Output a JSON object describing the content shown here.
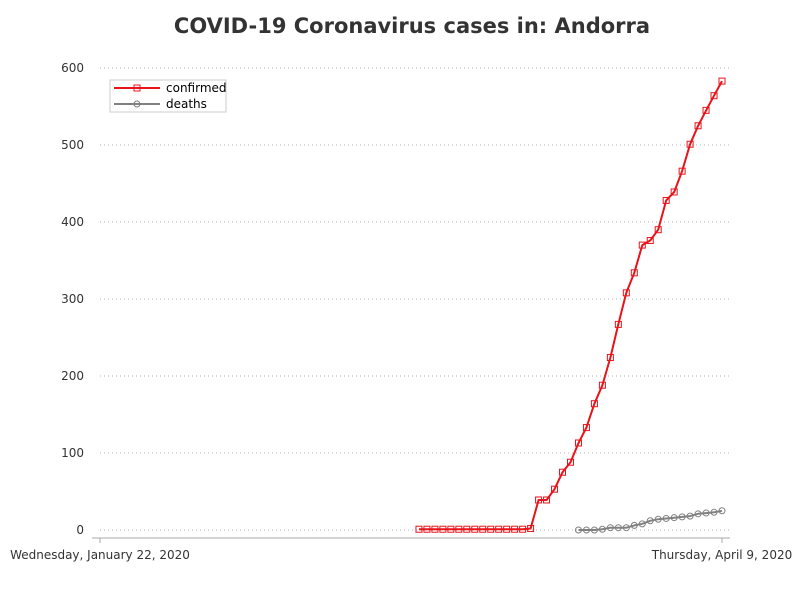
{
  "chart_data": {
    "type": "line",
    "title": "COVID-19 Coronavirus cases in: Andorra",
    "xlabel": "",
    "ylabel": "",
    "x_start_label": "Wednesday, January 22, 2020",
    "x_end_label": "Thursday, April 9, 2020",
    "x_range": [
      "2020-01-22",
      "2020-04-09"
    ],
    "ylim": [
      0,
      600
    ],
    "yticks": [
      "0",
      "100",
      "200",
      "300",
      "400",
      "500",
      "600"
    ],
    "grid": "horizontal dotted",
    "legend_position": "top-left",
    "series": [
      {
        "name": "confirmed",
        "color": "#e8141a",
        "marker": "square",
        "points": [
          [
            "2020-03-02",
            1
          ],
          [
            "2020-03-03",
            1
          ],
          [
            "2020-03-04",
            1
          ],
          [
            "2020-03-05",
            1
          ],
          [
            "2020-03-06",
            1
          ],
          [
            "2020-03-07",
            1
          ],
          [
            "2020-03-08",
            1
          ],
          [
            "2020-03-09",
            1
          ],
          [
            "2020-03-10",
            1
          ],
          [
            "2020-03-11",
            1
          ],
          [
            "2020-03-12",
            1
          ],
          [
            "2020-03-13",
            1
          ],
          [
            "2020-03-14",
            1
          ],
          [
            "2020-03-15",
            1
          ],
          [
            "2020-03-16",
            2
          ],
          [
            "2020-03-17",
            39
          ],
          [
            "2020-03-18",
            39
          ],
          [
            "2020-03-19",
            53
          ],
          [
            "2020-03-20",
            75
          ],
          [
            "2020-03-21",
            88
          ],
          [
            "2020-03-22",
            113
          ],
          [
            "2020-03-23",
            133
          ],
          [
            "2020-03-24",
            164
          ],
          [
            "2020-03-25",
            188
          ],
          [
            "2020-03-26",
            224
          ],
          [
            "2020-03-27",
            267
          ],
          [
            "2020-03-28",
            308
          ],
          [
            "2020-03-29",
            334
          ],
          [
            "2020-03-30",
            370
          ],
          [
            "2020-03-31",
            376
          ],
          [
            "2020-04-01",
            390
          ],
          [
            "2020-04-02",
            428
          ],
          [
            "2020-04-03",
            439
          ],
          [
            "2020-04-04",
            466
          ],
          [
            "2020-04-05",
            501
          ],
          [
            "2020-04-06",
            525
          ],
          [
            "2020-04-07",
            545
          ],
          [
            "2020-04-08",
            564
          ],
          [
            "2020-04-09",
            583
          ]
        ]
      },
      {
        "name": "deaths",
        "color": "#808080",
        "marker": "circle",
        "points": [
          [
            "2020-03-22",
            0
          ],
          [
            "2020-03-23",
            0
          ],
          [
            "2020-03-24",
            0
          ],
          [
            "2020-03-25",
            1
          ],
          [
            "2020-03-26",
            3
          ],
          [
            "2020-03-27",
            3
          ],
          [
            "2020-03-28",
            3
          ],
          [
            "2020-03-29",
            6
          ],
          [
            "2020-03-30",
            8
          ],
          [
            "2020-03-31",
            12
          ],
          [
            "2020-04-01",
            14
          ],
          [
            "2020-04-02",
            15
          ],
          [
            "2020-04-03",
            16
          ],
          [
            "2020-04-04",
            17
          ],
          [
            "2020-04-05",
            18
          ],
          [
            "2020-04-06",
            21
          ],
          [
            "2020-04-07",
            22
          ],
          [
            "2020-04-08",
            23
          ],
          [
            "2020-04-09",
            25
          ]
        ]
      }
    ]
  }
}
